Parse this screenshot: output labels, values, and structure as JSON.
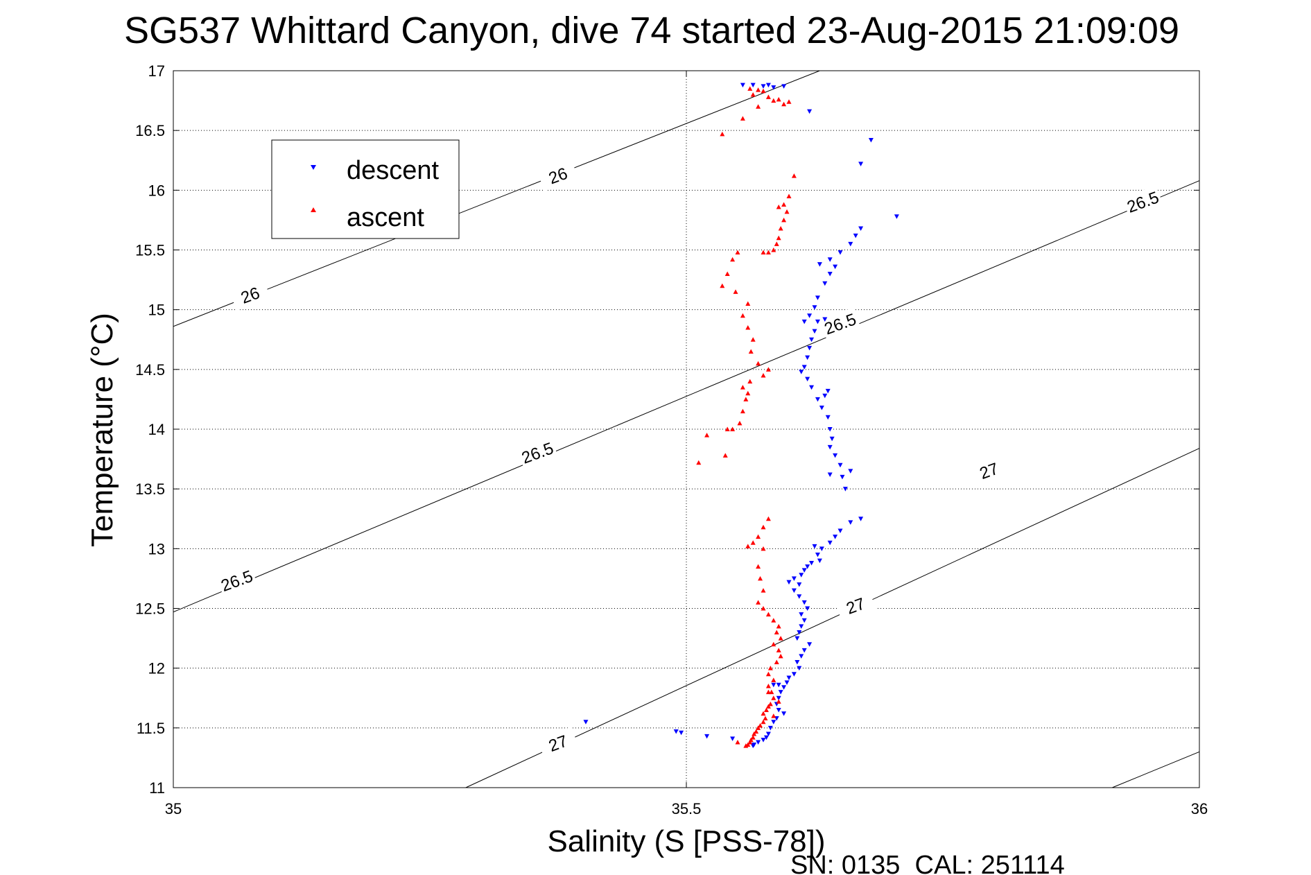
{
  "chart_data": {
    "type": "scatter",
    "title": "SG537 Whittard Canyon, dive 74 started 23-Aug-2015 21:09:09",
    "xlabel": "Salinity (S [PSS-78])",
    "ylabel": "Temperature (°C)",
    "xlim": [
      35,
      36
    ],
    "ylim": [
      11,
      17
    ],
    "x_ticks": [
      "35",
      "35.5",
      "36"
    ],
    "y_ticks": [
      "11",
      "11.5",
      "12",
      "12.5",
      "13",
      "13.5",
      "14",
      "14.5",
      "15",
      "15.5",
      "16",
      "16.5",
      "17"
    ],
    "grid": true,
    "legend_placement": "upper-left",
    "footer": "SN: 0135  CAL: 251114",
    "contours": [
      {
        "level": "26",
        "points": [
          [
            35.0,
            14.86
          ],
          [
            35.63,
            17.0
          ]
        ]
      },
      {
        "level": "26.5",
        "points": [
          [
            35.0,
            12.47
          ],
          [
            36.0,
            16.08
          ]
        ]
      },
      {
        "level": "27",
        "points": [
          [
            35.285,
            11.0
          ],
          [
            36.0,
            13.84
          ]
        ]
      },
      {
        "level": "",
        "points": [
          [
            35.915,
            11.0
          ],
          [
            36.0,
            11.3
          ]
        ]
      }
    ],
    "contour_labels": [
      {
        "text": "26",
        "x": 35.375,
        "y": 16.12
      },
      {
        "text": "26",
        "x": 35.075,
        "y": 15.12
      },
      {
        "text": "26.5",
        "x": 35.945,
        "y": 15.9
      },
      {
        "text": "26.5",
        "x": 35.65,
        "y": 14.88
      },
      {
        "text": "26.5",
        "x": 35.355,
        "y": 13.8
      },
      {
        "text": "26.5",
        "x": 35.062,
        "y": 12.73
      },
      {
        "text": "27",
        "x": 35.795,
        "y": 13.65
      },
      {
        "text": "27",
        "x": 35.665,
        "y": 12.52
      },
      {
        "text": "27",
        "x": 35.375,
        "y": 11.37
      }
    ],
    "series": [
      {
        "name": "descent",
        "color": "#0000ff",
        "marker": "triangle-down",
        "points": [
          [
            35.555,
            16.88
          ],
          [
            35.565,
            16.88
          ],
          [
            35.575,
            16.87
          ],
          [
            35.58,
            16.88
          ],
          [
            35.585,
            16.86
          ],
          [
            35.595,
            16.87
          ],
          [
            35.62,
            16.66
          ],
          [
            35.68,
            16.42
          ],
          [
            35.67,
            16.22
          ],
          [
            35.705,
            15.78
          ],
          [
            35.67,
            15.68
          ],
          [
            35.665,
            15.62
          ],
          [
            35.66,
            15.55
          ],
          [
            35.65,
            15.48
          ],
          [
            35.64,
            15.42
          ],
          [
            35.63,
            15.38
          ],
          [
            35.645,
            15.36
          ],
          [
            35.64,
            15.3
          ],
          [
            35.635,
            15.22
          ],
          [
            35.628,
            15.1
          ],
          [
            35.625,
            15.02
          ],
          [
            35.62,
            14.95
          ],
          [
            35.628,
            14.9
          ],
          [
            35.635,
            14.92
          ],
          [
            35.615,
            14.9
          ],
          [
            35.625,
            14.82
          ],
          [
            35.622,
            14.75
          ],
          [
            35.62,
            14.68
          ],
          [
            35.618,
            14.6
          ],
          [
            35.615,
            14.52
          ],
          [
            35.612,
            14.48
          ],
          [
            35.618,
            14.42
          ],
          [
            35.622,
            14.35
          ],
          [
            35.628,
            14.25
          ],
          [
            35.632,
            14.18
          ],
          [
            35.635,
            14.28
          ],
          [
            35.638,
            14.32
          ],
          [
            35.638,
            14.1
          ],
          [
            35.64,
            14.0
          ],
          [
            35.642,
            13.92
          ],
          [
            35.64,
            13.85
          ],
          [
            35.645,
            13.78
          ],
          [
            35.65,
            13.7
          ],
          [
            35.652,
            13.6
          ],
          [
            35.655,
            13.5
          ],
          [
            35.64,
            13.62
          ],
          [
            35.66,
            13.65
          ],
          [
            35.67,
            13.25
          ],
          [
            35.66,
            13.22
          ],
          [
            35.65,
            13.15
          ],
          [
            35.645,
            13.1
          ],
          [
            35.64,
            13.05
          ],
          [
            35.632,
            13.0
          ],
          [
            35.625,
            13.02
          ],
          [
            35.628,
            12.95
          ],
          [
            35.63,
            12.9
          ],
          [
            35.622,
            12.88
          ],
          [
            35.618,
            12.85
          ],
          [
            35.615,
            12.82
          ],
          [
            35.612,
            12.78
          ],
          [
            35.605,
            12.75
          ],
          [
            35.6,
            12.72
          ],
          [
            35.61,
            12.7
          ],
          [
            35.605,
            12.65
          ],
          [
            35.61,
            12.6
          ],
          [
            35.615,
            12.55
          ],
          [
            35.618,
            12.5
          ],
          [
            35.612,
            12.45
          ],
          [
            35.615,
            12.4
          ],
          [
            35.612,
            12.35
          ],
          [
            35.61,
            12.3
          ],
          [
            35.608,
            12.25
          ],
          [
            35.62,
            12.2
          ],
          [
            35.615,
            12.15
          ],
          [
            35.612,
            12.1
          ],
          [
            35.608,
            12.05
          ],
          [
            35.61,
            12.0
          ],
          [
            35.605,
            11.95
          ],
          [
            35.6,
            11.92
          ],
          [
            35.598,
            11.88
          ],
          [
            35.59,
            11.86
          ],
          [
            35.585,
            11.86
          ],
          [
            35.595,
            11.84
          ],
          [
            35.592,
            11.8
          ],
          [
            35.59,
            11.75
          ],
          [
            35.588,
            11.7
          ],
          [
            35.59,
            11.65
          ],
          [
            35.595,
            11.62
          ],
          [
            35.588,
            11.58
          ],
          [
            35.585,
            11.55
          ],
          [
            35.582,
            11.5
          ],
          [
            35.58,
            11.45
          ],
          [
            35.578,
            11.42
          ],
          [
            35.575,
            11.4
          ],
          [
            35.57,
            11.38
          ],
          [
            35.566,
            11.36
          ],
          [
            35.402,
            11.55
          ],
          [
            35.49,
            11.47
          ],
          [
            35.495,
            11.46
          ],
          [
            35.52,
            11.43
          ],
          [
            35.545,
            11.41
          ],
          [
            35.565,
            11.35
          ]
        ]
      },
      {
        "name": "ascent",
        "color": "#ff0000",
        "marker": "triangle-up",
        "points": [
          [
            35.562,
            16.85
          ],
          [
            35.57,
            16.84
          ],
          [
            35.575,
            16.83
          ],
          [
            35.565,
            16.8
          ],
          [
            35.58,
            16.78
          ],
          [
            35.585,
            16.75
          ],
          [
            35.59,
            16.76
          ],
          [
            35.595,
            16.72
          ],
          [
            35.6,
            16.74
          ],
          [
            35.57,
            16.7
          ],
          [
            35.555,
            16.6
          ],
          [
            35.535,
            16.47
          ],
          [
            35.605,
            16.12
          ],
          [
            35.6,
            15.95
          ],
          [
            35.595,
            15.88
          ],
          [
            35.59,
            15.86
          ],
          [
            35.598,
            15.82
          ],
          [
            35.595,
            15.75
          ],
          [
            35.592,
            15.68
          ],
          [
            35.59,
            15.6
          ],
          [
            35.588,
            15.55
          ],
          [
            35.585,
            15.5
          ],
          [
            35.58,
            15.48
          ],
          [
            35.575,
            15.48
          ],
          [
            35.55,
            15.48
          ],
          [
            35.545,
            15.42
          ],
          [
            35.54,
            15.3
          ],
          [
            35.535,
            15.2
          ],
          [
            35.548,
            15.15
          ],
          [
            35.56,
            15.05
          ],
          [
            35.555,
            14.95
          ],
          [
            35.56,
            14.85
          ],
          [
            35.565,
            14.75
          ],
          [
            35.563,
            14.65
          ],
          [
            35.57,
            14.55
          ],
          [
            35.58,
            14.5
          ],
          [
            35.575,
            14.45
          ],
          [
            35.562,
            14.4
          ],
          [
            35.555,
            14.35
          ],
          [
            35.56,
            14.3
          ],
          [
            35.558,
            14.25
          ],
          [
            35.555,
            14.15
          ],
          [
            35.552,
            14.05
          ],
          [
            35.545,
            14.0
          ],
          [
            35.54,
            14.0
          ],
          [
            35.52,
            13.95
          ],
          [
            35.538,
            13.78
          ],
          [
            35.512,
            13.72
          ],
          [
            35.58,
            13.25
          ],
          [
            35.575,
            13.18
          ],
          [
            35.57,
            13.1
          ],
          [
            35.565,
            13.05
          ],
          [
            35.56,
            13.02
          ],
          [
            35.575,
            13.0
          ],
          [
            35.57,
            12.85
          ],
          [
            35.572,
            12.75
          ],
          [
            35.575,
            12.65
          ],
          [
            35.57,
            12.55
          ],
          [
            35.575,
            12.5
          ],
          [
            35.58,
            12.45
          ],
          [
            35.585,
            12.4
          ],
          [
            35.59,
            12.35
          ],
          [
            35.588,
            12.3
          ],
          [
            35.592,
            12.25
          ],
          [
            35.585,
            12.2
          ],
          [
            35.59,
            12.15
          ],
          [
            35.592,
            12.1
          ],
          [
            35.588,
            12.05
          ],
          [
            35.582,
            12.0
          ],
          [
            35.58,
            11.95
          ],
          [
            35.585,
            11.9
          ],
          [
            35.58,
            11.85
          ],
          [
            35.583,
            11.8
          ],
          [
            35.585,
            11.75
          ],
          [
            35.582,
            11.7
          ],
          [
            35.58,
            11.68
          ],
          [
            35.578,
            11.65
          ],
          [
            35.575,
            11.62
          ],
          [
            35.577,
            11.58
          ],
          [
            35.575,
            11.55
          ],
          [
            35.572,
            11.52
          ],
          [
            35.57,
            11.5
          ],
          [
            35.568,
            11.47
          ],
          [
            35.566,
            11.45
          ],
          [
            35.565,
            11.42
          ],
          [
            35.563,
            11.4
          ],
          [
            35.562,
            11.38
          ],
          [
            35.56,
            11.36
          ],
          [
            35.558,
            11.35
          ],
          [
            35.58,
            11.8
          ],
          [
            35.585,
            11.6
          ],
          [
            35.59,
            11.72
          ],
          [
            35.55,
            11.38
          ]
        ]
      }
    ]
  },
  "legend": {
    "items": [
      {
        "label": "descent",
        "color": "#0000ff",
        "marker": "triangle-down"
      },
      {
        "label": "ascent",
        "color": "#ff0000",
        "marker": "triangle-up"
      }
    ]
  }
}
